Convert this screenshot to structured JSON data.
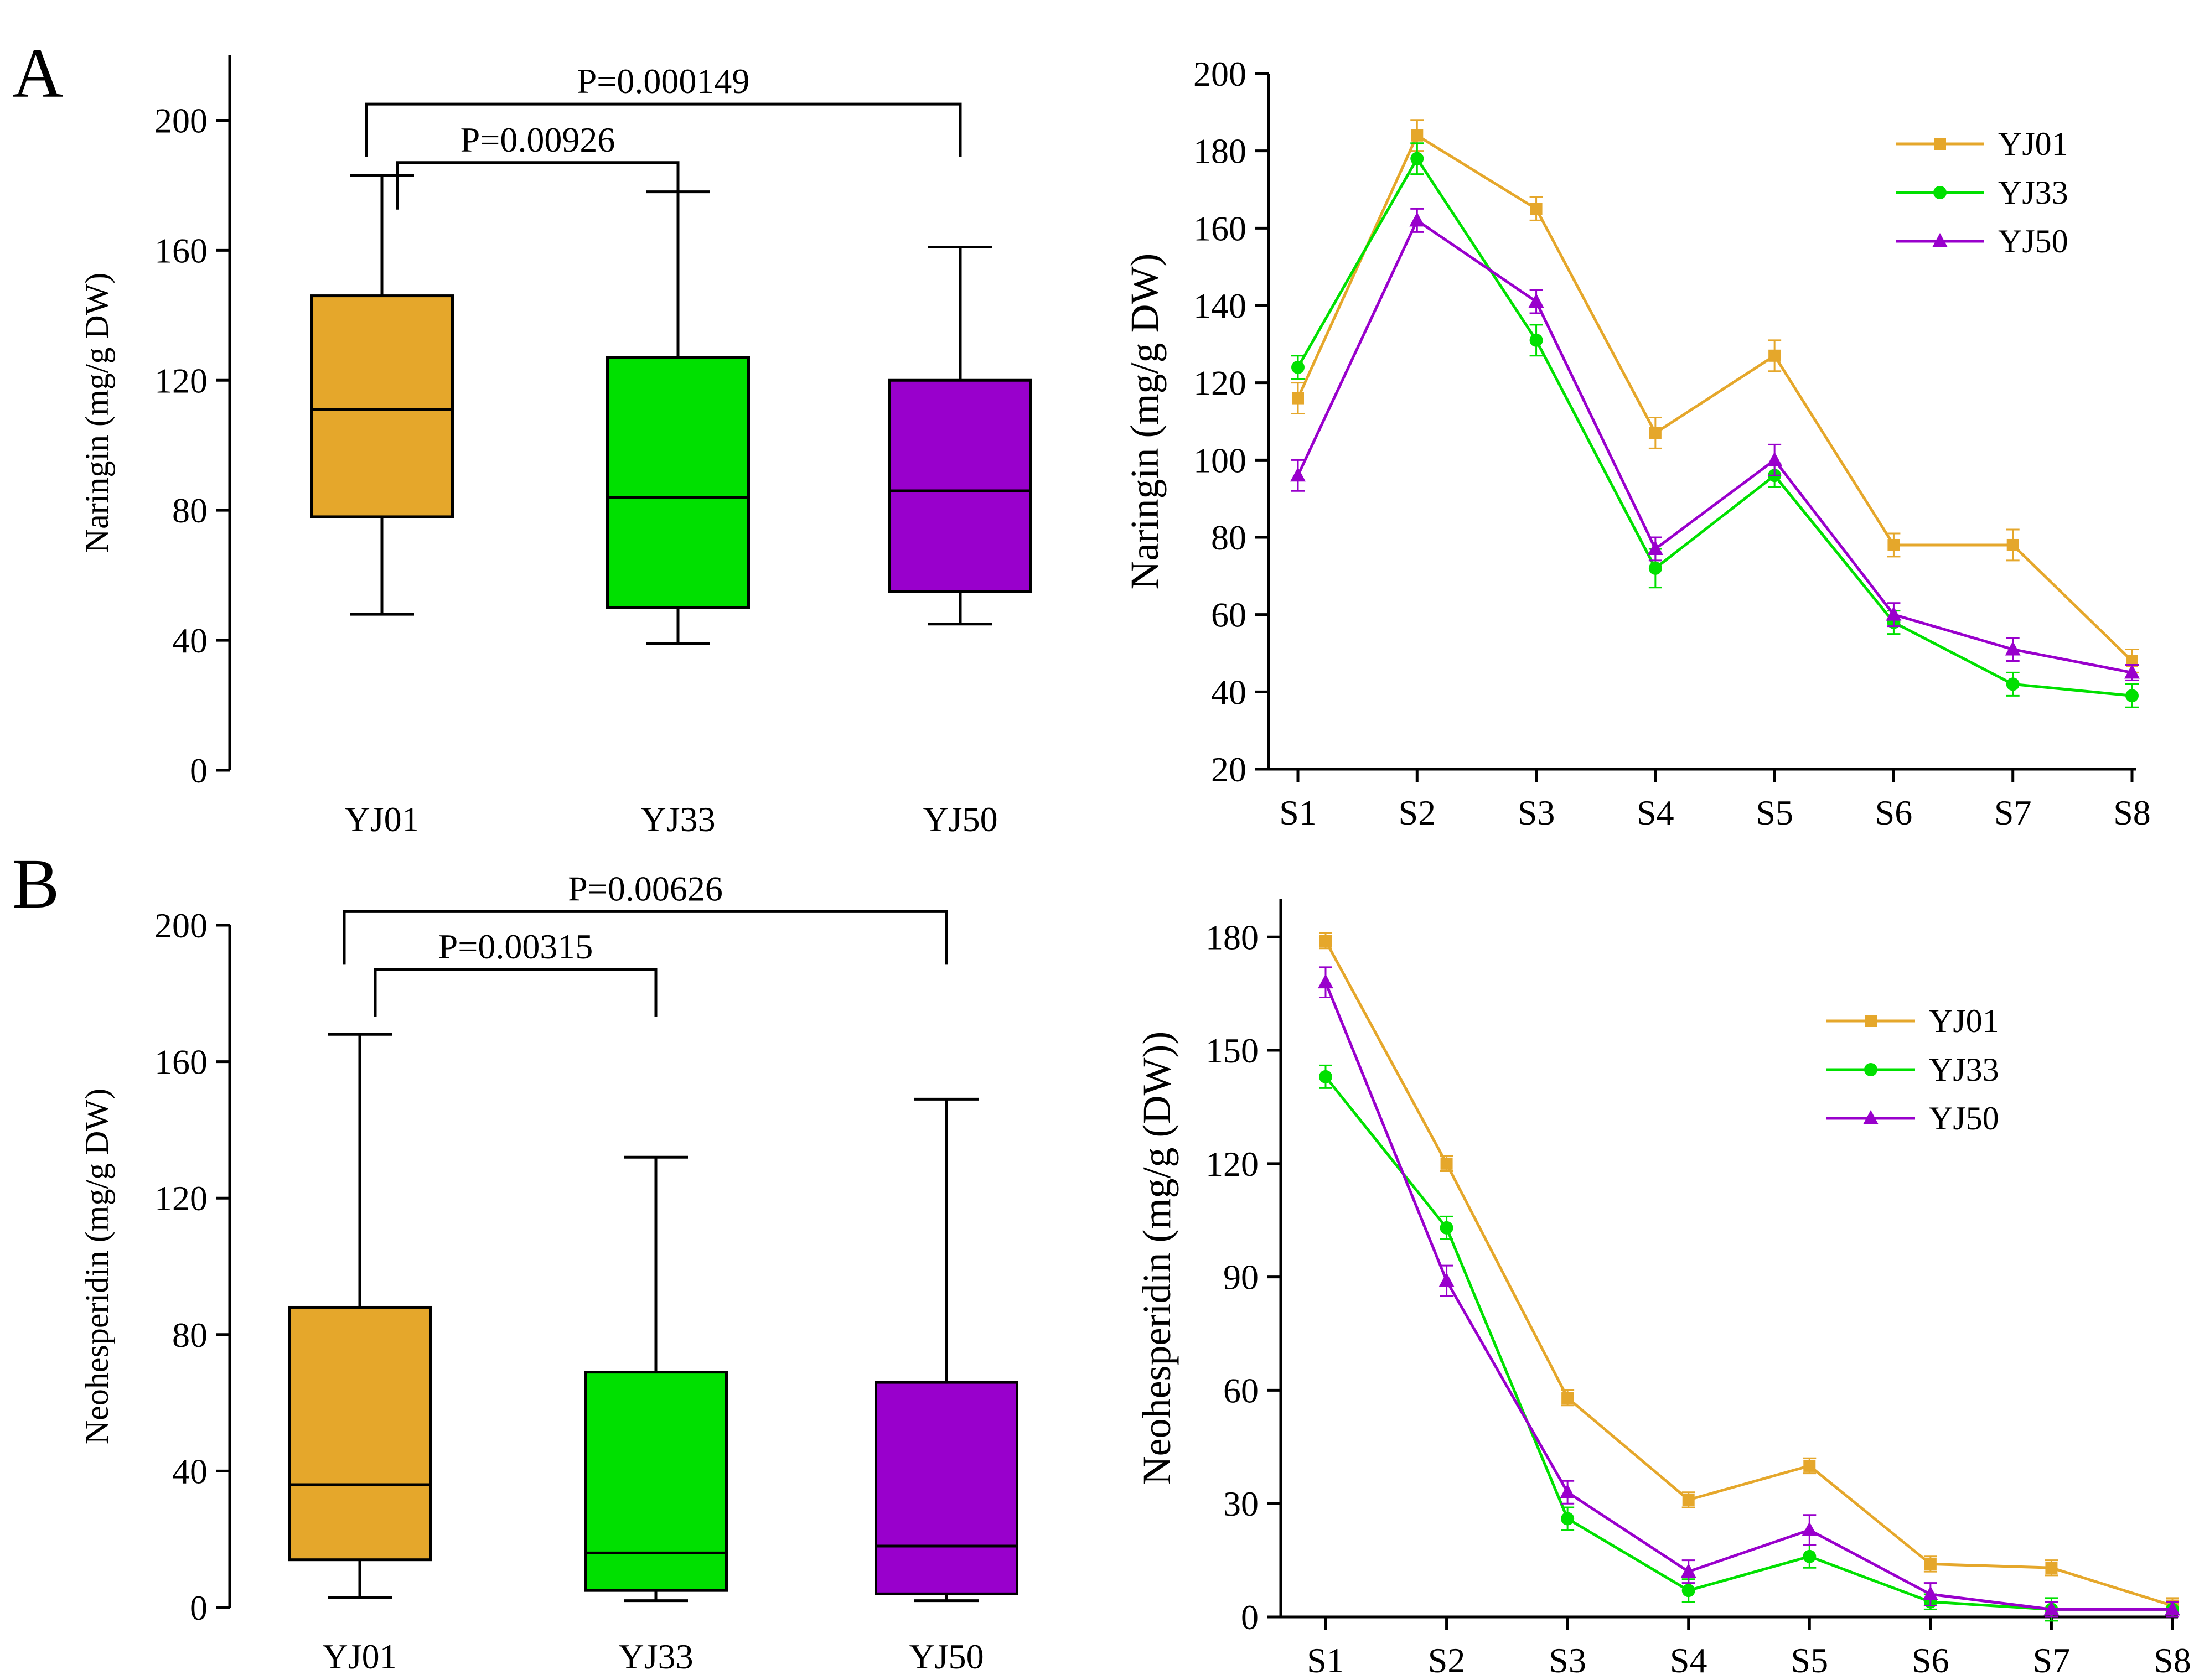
{
  "panels": [
    {
      "letter": "A"
    },
    {
      "letter": "B"
    }
  ],
  "colors": {
    "YJ01": "#E5A72B",
    "YJ33": "#00E000",
    "YJ50": "#9900CC"
  },
  "chart_data": [
    {
      "id": "a-box",
      "type": "box",
      "panel": "A",
      "ylabel": "Naringin (mg/g DW)",
      "ylim": [
        0,
        220
      ],
      "yticks": [
        0,
        40,
        80,
        120,
        160,
        200
      ],
      "categories": [
        "YJ01",
        "YJ33",
        "YJ50"
      ],
      "boxes": [
        {
          "name": "YJ01",
          "min": 48,
          "q1": 78,
          "median": 111,
          "q3": 146,
          "max": 183
        },
        {
          "name": "YJ33",
          "min": 39,
          "q1": 50,
          "median": 84,
          "q3": 127,
          "max": 178
        },
        {
          "name": "YJ50",
          "min": 45,
          "q1": 55,
          "median": 86,
          "q3": 120,
          "max": 161
        }
      ],
      "annotations": [
        {
          "from": "YJ01",
          "to": "YJ50",
          "label": "P=0.000149",
          "y": 205,
          "level": 2
        },
        {
          "from": "YJ01",
          "to": "YJ33",
          "label": "P=0.00926",
          "y": 187,
          "level": 1
        }
      ]
    },
    {
      "id": "a-line",
      "type": "line",
      "panel": "A",
      "ylabel": "Naringin (mg/g DW)",
      "ylim": [
        20,
        200
      ],
      "yticks": [
        20,
        40,
        60,
        80,
        100,
        120,
        140,
        160,
        180,
        200
      ],
      "categories": [
        "S1",
        "S2",
        "S3",
        "S4",
        "S5",
        "S6",
        "S7",
        "S8"
      ],
      "legend_position": "top-right",
      "series": [
        {
          "name": "YJ01",
          "marker": "square",
          "values": [
            116,
            184,
            165,
            107,
            127,
            78,
            78,
            48
          ],
          "errors": [
            4,
            4,
            3,
            4,
            4,
            3,
            4,
            3
          ]
        },
        {
          "name": "YJ33",
          "marker": "circle",
          "values": [
            124,
            178,
            131,
            72,
            96,
            58,
            42,
            39
          ],
          "errors": [
            3,
            4,
            4,
            5,
            3,
            3,
            3,
            3
          ]
        },
        {
          "name": "YJ50",
          "marker": "triangle",
          "values": [
            96,
            162,
            141,
            77,
            100,
            60,
            51,
            45
          ],
          "errors": [
            4,
            3,
            3,
            3,
            4,
            3,
            3,
            2
          ]
        }
      ]
    },
    {
      "id": "b-box",
      "type": "box",
      "panel": "B",
      "ylabel": "Neohesperidin (mg/g DW)",
      "ylim": [
        0,
        200
      ],
      "yticks": [
        0,
        40,
        80,
        120,
        160,
        200
      ],
      "categories": [
        "YJ01",
        "YJ33",
        "YJ50"
      ],
      "boxes": [
        {
          "name": "YJ01",
          "min": 3,
          "q1": 14,
          "median": 36,
          "q3": 88,
          "max": 168
        },
        {
          "name": "YJ33",
          "min": 2,
          "q1": 5,
          "median": 16,
          "q3": 69,
          "max": 132
        },
        {
          "name": "YJ50",
          "min": 2,
          "q1": 4,
          "median": 18,
          "q3": 66,
          "max": 149
        }
      ],
      "annotations": [
        {
          "from": "YJ01",
          "to": "YJ50",
          "label": "P=0.00626",
          "y": 204,
          "level": 2
        },
        {
          "from": "YJ01",
          "to": "YJ33",
          "label": "P=0.00315",
          "y": 187,
          "level": 1
        }
      ]
    },
    {
      "id": "b-line",
      "type": "line",
      "panel": "B",
      "ylabel": "Neohesperidin (mg/g (DW))",
      "ylim": [
        0,
        190
      ],
      "yticks": [
        0,
        30,
        60,
        90,
        120,
        150,
        180
      ],
      "categories": [
        "S1",
        "S2",
        "S3",
        "S4",
        "S5",
        "S6",
        "S7",
        "S8"
      ],
      "legend_position": "top-right",
      "series": [
        {
          "name": "YJ01",
          "marker": "square",
          "values": [
            179,
            120,
            58,
            31,
            40,
            14,
            13,
            3
          ],
          "errors": [
            2,
            2,
            2,
            2,
            2,
            2,
            2,
            2
          ]
        },
        {
          "name": "YJ33",
          "marker": "circle",
          "values": [
            143,
            103,
            26,
            7,
            16,
            4,
            2,
            2
          ],
          "errors": [
            3,
            3,
            3,
            3,
            3,
            2,
            3,
            2
          ]
        },
        {
          "name": "YJ50",
          "marker": "triangle",
          "values": [
            168,
            89,
            33,
            12,
            23,
            6,
            2,
            2
          ],
          "errors": [
            4,
            4,
            3,
            3,
            4,
            3,
            2,
            2
          ]
        }
      ]
    }
  ]
}
